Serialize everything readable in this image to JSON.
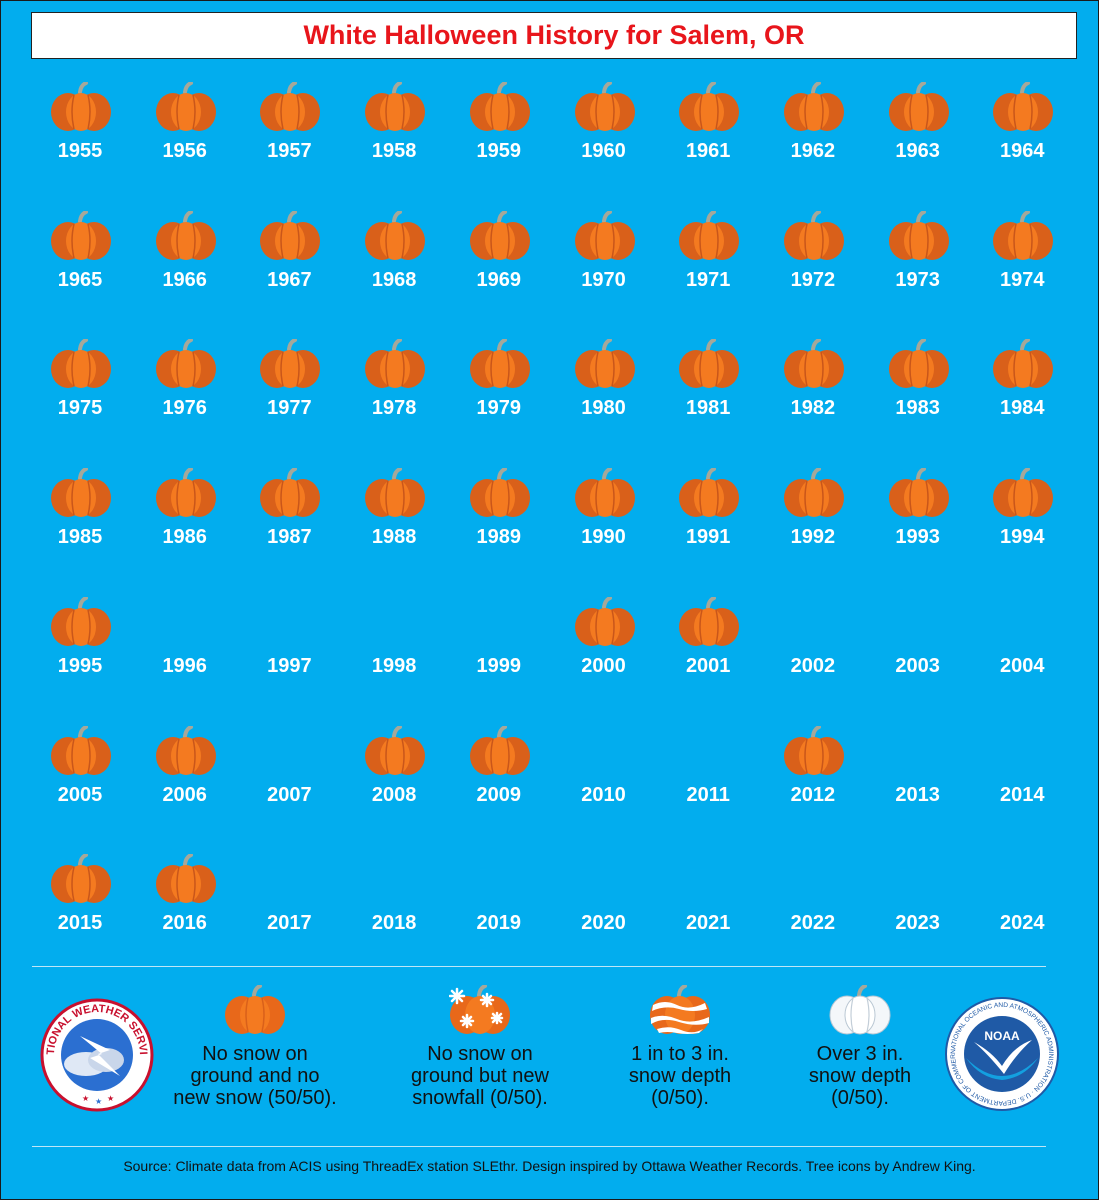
{
  "title": "White Halloween History for Salem, OR",
  "colors": {
    "background": "#02adee",
    "title": "#e8151b",
    "pumpkin": "#f47a20",
    "pumpkin_dark": "#d9601a",
    "stem": "#a6a89a"
  },
  "years": [
    {
      "year": "1955",
      "icon": "pumpkin-icon"
    },
    {
      "year": "1956",
      "icon": "pumpkin-icon"
    },
    {
      "year": "1957",
      "icon": "pumpkin-icon"
    },
    {
      "year": "1958",
      "icon": "pumpkin-icon"
    },
    {
      "year": "1959",
      "icon": "pumpkin-icon"
    },
    {
      "year": "1960",
      "icon": "pumpkin-icon"
    },
    {
      "year": "1961",
      "icon": "pumpkin-icon"
    },
    {
      "year": "1962",
      "icon": "pumpkin-icon"
    },
    {
      "year": "1963",
      "icon": "pumpkin-icon"
    },
    {
      "year": "1964",
      "icon": "pumpkin-icon"
    },
    {
      "year": "1965",
      "icon": "pumpkin-icon"
    },
    {
      "year": "1966",
      "icon": "pumpkin-icon"
    },
    {
      "year": "1967",
      "icon": "pumpkin-icon"
    },
    {
      "year": "1968",
      "icon": "pumpkin-icon"
    },
    {
      "year": "1969",
      "icon": "pumpkin-icon"
    },
    {
      "year": "1970",
      "icon": "pumpkin-icon"
    },
    {
      "year": "1971",
      "icon": "pumpkin-icon"
    },
    {
      "year": "1972",
      "icon": "pumpkin-icon"
    },
    {
      "year": "1973",
      "icon": "pumpkin-icon"
    },
    {
      "year": "1974",
      "icon": "pumpkin-icon"
    },
    {
      "year": "1975",
      "icon": "pumpkin-icon"
    },
    {
      "year": "1976",
      "icon": "pumpkin-icon"
    },
    {
      "year": "1977",
      "icon": "pumpkin-icon"
    },
    {
      "year": "1978",
      "icon": "pumpkin-icon"
    },
    {
      "year": "1979",
      "icon": "pumpkin-icon"
    },
    {
      "year": "1980",
      "icon": "pumpkin-icon"
    },
    {
      "year": "1981",
      "icon": "pumpkin-icon"
    },
    {
      "year": "1982",
      "icon": "pumpkin-icon"
    },
    {
      "year": "1983",
      "icon": "pumpkin-icon"
    },
    {
      "year": "1984",
      "icon": "pumpkin-icon"
    },
    {
      "year": "1985",
      "icon": "pumpkin-icon"
    },
    {
      "year": "1986",
      "icon": "pumpkin-icon"
    },
    {
      "year": "1987",
      "icon": "pumpkin-icon"
    },
    {
      "year": "1988",
      "icon": "pumpkin-icon"
    },
    {
      "year": "1989",
      "icon": "pumpkin-icon"
    },
    {
      "year": "1990",
      "icon": "pumpkin-icon"
    },
    {
      "year": "1991",
      "icon": "pumpkin-icon"
    },
    {
      "year": "1992",
      "icon": "pumpkin-icon"
    },
    {
      "year": "1993",
      "icon": "pumpkin-icon"
    },
    {
      "year": "1994",
      "icon": "pumpkin-icon"
    },
    {
      "year": "1995",
      "icon": "pumpkin-icon"
    },
    {
      "year": "1996",
      "icon": ""
    },
    {
      "year": "1997",
      "icon": ""
    },
    {
      "year": "1998",
      "icon": ""
    },
    {
      "year": "1999",
      "icon": ""
    },
    {
      "year": "2000",
      "icon": "pumpkin-icon"
    },
    {
      "year": "2001",
      "icon": "pumpkin-icon"
    },
    {
      "year": "2002",
      "icon": ""
    },
    {
      "year": "2003",
      "icon": ""
    },
    {
      "year": "2004",
      "icon": ""
    },
    {
      "year": "2005",
      "icon": "pumpkin-icon"
    },
    {
      "year": "2006",
      "icon": "pumpkin-icon"
    },
    {
      "year": "2007",
      "icon": ""
    },
    {
      "year": "2008",
      "icon": "pumpkin-icon"
    },
    {
      "year": "2009",
      "icon": "pumpkin-icon"
    },
    {
      "year": "2010",
      "icon": ""
    },
    {
      "year": "2011",
      "icon": ""
    },
    {
      "year": "2012",
      "icon": "pumpkin-icon"
    },
    {
      "year": "2013",
      "icon": ""
    },
    {
      "year": "2014",
      "icon": ""
    },
    {
      "year": "2015",
      "icon": "pumpkin-icon"
    },
    {
      "year": "2016",
      "icon": "pumpkin-icon"
    },
    {
      "year": "2017",
      "icon": ""
    },
    {
      "year": "2018",
      "icon": ""
    },
    {
      "year": "2019",
      "icon": ""
    },
    {
      "year": "2020",
      "icon": ""
    },
    {
      "year": "2021",
      "icon": ""
    },
    {
      "year": "2022",
      "icon": ""
    },
    {
      "year": "2023",
      "icon": ""
    },
    {
      "year": "2024",
      "icon": ""
    }
  ],
  "legend": [
    {
      "icon": "pumpkin-icon",
      "text": "No snow on\nground and no\nnew snow (50/50)."
    },
    {
      "icon": "snowflake-pumpkin-icon",
      "text": "No snow on\nground but new\nsnowfall (0/50)."
    },
    {
      "icon": "striped-snow-pumpkin-icon",
      "text": "1 in to 3 in.\nsnow depth\n(0/50)."
    },
    {
      "icon": "white-pumpkin-icon",
      "text": "Over 3 in.\nsnow depth\n(0/50)."
    }
  ],
  "logos": {
    "nws": {
      "icon": "nws-logo-icon",
      "text": "NATIONAL WEATHER SERVICE"
    },
    "noaa": {
      "icon": "noaa-logo-icon",
      "text": "NOAA",
      "ring_text": "NATIONAL OCEANIC AND ATMOSPHERIC ADMINISTRATION · U.S. DEPARTMENT OF COMMERCE"
    }
  },
  "source": "Source: Climate data from ACIS using ThreadEx station SLEthr. Design inspired by Ottawa Weather Records. Tree icons by Andrew King."
}
